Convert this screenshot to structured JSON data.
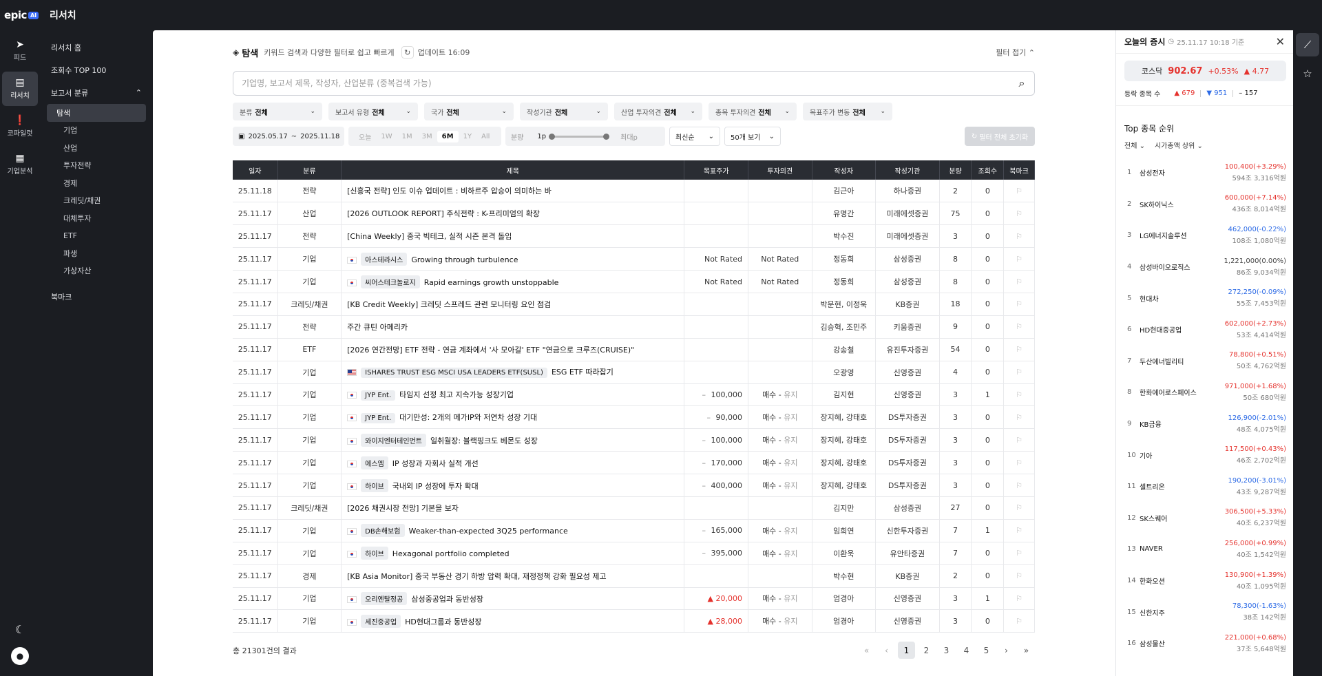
{
  "app": {
    "logo": "epic",
    "logo_badge": "AI",
    "title": "리서치"
  },
  "rail": [
    {
      "label": "피드",
      "icon": "send-icon",
      "glyph": "➤"
    },
    {
      "label": "리서치",
      "icon": "clipboard-icon",
      "glyph": "▤"
    },
    {
      "label": "코파일럿",
      "icon": "copilot-icon",
      "glyph": "❗"
    },
    {
      "label": "기업분석",
      "icon": "building-icon",
      "glyph": "▦"
    }
  ],
  "sidebar": {
    "home": "리서치 홈",
    "top100": "조회수 TOP 100",
    "category_head": "보고서 분류",
    "subitems": [
      "탐색",
      "기업",
      "산업",
      "투자전략",
      "경제",
      "크레딧/채권",
      "대체투자",
      "ETF",
      "파생",
      "가상자산"
    ],
    "bookmark": "북마크"
  },
  "header": {
    "title": "탐색",
    "desc": "키워드 검색과 다양한 필터로 쉽고 빠르게",
    "update": "업데이트 16:09",
    "fold": "필터 접기"
  },
  "search": {
    "placeholder": "기업명, 보고서 제목, 작성자, 산업분류 (중복검색 가능)"
  },
  "filters": [
    {
      "label": "분류",
      "value": "전체"
    },
    {
      "label": "보고서 유형",
      "value": "전체"
    },
    {
      "label": "국가",
      "value": "전체"
    },
    {
      "label": "작성기관",
      "value": "전체"
    },
    {
      "label": "산업 투자의견",
      "value": "전체"
    },
    {
      "label": "종목 투자의견",
      "value": "전체"
    },
    {
      "label": "목표주가 변동",
      "value": "전체"
    }
  ],
  "controls": {
    "date_from": "2025.05.17",
    "date_to": "2025.11.18",
    "periods": [
      "오늘",
      "1W",
      "1M",
      "3M",
      "6M",
      "1Y",
      "All"
    ],
    "period_active": "6M",
    "amount_label": "분량",
    "amount_min": "1p",
    "amount_max": "최대p",
    "sort": "최신순",
    "per_page": "50개 보기",
    "reset": "필터 전체 초기화"
  },
  "table": {
    "headers": [
      "일자",
      "분류",
      "제목",
      "목표주가",
      "투자의견",
      "작성자",
      "작성기관",
      "분량",
      "조회수",
      "북마크"
    ],
    "rows": [
      {
        "date": "25.11.18",
        "cat": "전략",
        "flag": "",
        "stock": "",
        "title": "[신흥국 전략] 인도 이슈 업데이트 : 비하르주 압승이 의미하는 바",
        "target": "",
        "dir": "",
        "opinion": "",
        "author": "김근아",
        "org": "하나증권",
        "pages": "2",
        "views": "0"
      },
      {
        "date": "25.11.17",
        "cat": "산업",
        "flag": "",
        "stock": "",
        "title": "[2026 OUTLOOK REPORT] 주식전략 : K-프리미엄의 확장",
        "target": "",
        "dir": "",
        "opinion": "",
        "author": "유명간",
        "org": "미래에셋증권",
        "pages": "75",
        "views": "0"
      },
      {
        "date": "25.11.17",
        "cat": "전략",
        "flag": "",
        "stock": "",
        "title": "[China Weekly] 중국 빅테크, 실적 시즌 본격 돌입",
        "target": "",
        "dir": "",
        "opinion": "",
        "author": "박수진",
        "org": "미래에셋증권",
        "pages": "3",
        "views": "0"
      },
      {
        "date": "25.11.17",
        "cat": "기업",
        "flag": "kr",
        "stock": "아스테라시스",
        "title": "Growing through turbulence",
        "target": "Not Rated",
        "dir": "",
        "opinion": "Not Rated",
        "author": "정동희",
        "org": "삼성증권",
        "pages": "8",
        "views": "0"
      },
      {
        "date": "25.11.17",
        "cat": "기업",
        "flag": "kr",
        "stock": "씨어스테크놀로지",
        "title": "Rapid earnings growth unstoppable",
        "target": "Not Rated",
        "dir": "",
        "opinion": "Not Rated",
        "author": "정동희",
        "org": "삼성증권",
        "pages": "8",
        "views": "0"
      },
      {
        "date": "25.11.17",
        "cat": "크레딧/채권",
        "flag": "",
        "stock": "",
        "title": "[KB Credit Weekly] 크레딧 스프레드 관련 모니터링 요인 점검",
        "target": "",
        "dir": "",
        "opinion": "",
        "author": "박문현, 이정욱",
        "org": "KB증권",
        "pages": "18",
        "views": "0"
      },
      {
        "date": "25.11.17",
        "cat": "전략",
        "flag": "",
        "stock": "",
        "title": "주간 큐틴 아메리카",
        "target": "",
        "dir": "",
        "opinion": "",
        "author": "김승혁, 조민주",
        "org": "키움증권",
        "pages": "9",
        "views": "0"
      },
      {
        "date": "25.11.17",
        "cat": "ETF",
        "flag": "",
        "stock": "",
        "title": "[2026 연간전망] ETF 전략 - 연금 계좌에서 '사 모아갈' ETF \"연금으로 크루즈(CRUISE)\"",
        "target": "",
        "dir": "",
        "opinion": "",
        "author": "강송철",
        "org": "유진투자증권",
        "pages": "54",
        "views": "0"
      },
      {
        "date": "25.11.17",
        "cat": "기업",
        "flag": "us",
        "stock": "ISHARES TRUST ESG MSCI USA LEADERS ETF(SUSL)",
        "title": "ESG ETF 따라잡기",
        "target": "",
        "dir": "",
        "opinion": "",
        "author": "오광영",
        "org": "신영증권",
        "pages": "4",
        "views": "0"
      },
      {
        "date": "25.11.17",
        "cat": "기업",
        "flag": "kr",
        "stock": "JYP Ent.",
        "title": "타임지 선정 최고 지속가능 성장기업",
        "target": "100,000",
        "dir": "–",
        "opinion": "매수 - 유지",
        "author": "김지현",
        "org": "신영증권",
        "pages": "3",
        "views": "1"
      },
      {
        "date": "25.11.17",
        "cat": "기업",
        "flag": "kr",
        "stock": "JYP Ent.",
        "title": "대기만성: 2개의 메가IP와 저연차 성장 기대",
        "target": "90,000",
        "dir": "–",
        "opinion": "매수 - 유지",
        "author": "장지혜, 강태호",
        "org": "DS투자증권",
        "pages": "3",
        "views": "0"
      },
      {
        "date": "25.11.17",
        "cat": "기업",
        "flag": "kr",
        "stock": "와이지엔터테인먼트",
        "title": "일취월장: 블랙핑크도 베몬도 성장",
        "target": "100,000",
        "dir": "–",
        "opinion": "매수 - 유지",
        "author": "장지혜, 강태호",
        "org": "DS투자증권",
        "pages": "3",
        "views": "0"
      },
      {
        "date": "25.11.17",
        "cat": "기업",
        "flag": "kr",
        "stock": "에스엠",
        "title": "IP 성장과 자회사 실적 개선",
        "target": "170,000",
        "dir": "–",
        "opinion": "매수 - 유지",
        "author": "장지혜, 강태호",
        "org": "DS투자증권",
        "pages": "3",
        "views": "0"
      },
      {
        "date": "25.11.17",
        "cat": "기업",
        "flag": "kr",
        "stock": "하이브",
        "title": "국내외 IP 성장에 투자 확대",
        "target": "400,000",
        "dir": "–",
        "opinion": "매수 - 유지",
        "author": "장지혜, 강태호",
        "org": "DS투자증권",
        "pages": "3",
        "views": "0"
      },
      {
        "date": "25.11.17",
        "cat": "크레딧/채권",
        "flag": "",
        "stock": "",
        "title": "[2026 채권시장 전망] 기본을 보자",
        "target": "",
        "dir": "",
        "opinion": "",
        "author": "김지만",
        "org": "삼성증권",
        "pages": "27",
        "views": "0"
      },
      {
        "date": "25.11.17",
        "cat": "기업",
        "flag": "kr",
        "stock": "DB손해보험",
        "title": "Weaker-than-expected 3Q25 performance",
        "target": "165,000",
        "dir": "–",
        "opinion": "매수 - 유지",
        "author": "임희연",
        "org": "신한투자증권",
        "pages": "7",
        "views": "1"
      },
      {
        "date": "25.11.17",
        "cat": "기업",
        "flag": "kr",
        "stock": "하이브",
        "title": "Hexagonal portfolio completed",
        "target": "395,000",
        "dir": "–",
        "opinion": "매수 - 유지",
        "author": "이환욱",
        "org": "유안타증권",
        "pages": "7",
        "views": "0"
      },
      {
        "date": "25.11.17",
        "cat": "경제",
        "flag": "",
        "stock": "",
        "title": "[KB Asia Monitor] 중국 부동산 경기 하방 압력 확대, 재정정책 강화 필요성 제고",
        "target": "",
        "dir": "",
        "opinion": "",
        "author": "박수현",
        "org": "KB증권",
        "pages": "2",
        "views": "0"
      },
      {
        "date": "25.11.17",
        "cat": "기업",
        "flag": "kr",
        "stock": "오리엔탈정공",
        "title": "삼성중공업과 동반성장",
        "target": "20,000",
        "dir": "▲",
        "opinion": "매수 - 유지",
        "author": "엄경아",
        "org": "신영증권",
        "pages": "3",
        "views": "1"
      },
      {
        "date": "25.11.17",
        "cat": "기업",
        "flag": "kr",
        "stock": "세진중공업",
        "title": "HD현대그룹과 동반성장",
        "target": "28,000",
        "dir": "▲",
        "opinion": "매수 - 유지",
        "author": "엄경아",
        "org": "신영증권",
        "pages": "3",
        "views": "0"
      }
    ]
  },
  "footer": {
    "total": "총 21301건의 결과",
    "pages": [
      "1",
      "2",
      "3",
      "4",
      "5"
    ],
    "current": "1"
  },
  "market": {
    "title": "오늘의 증시",
    "time": "25.11.17 10:18 기준",
    "index_name": "코스닥",
    "index_value": "902.67",
    "index_pct": "+0.53%",
    "index_chg": "▲ 4.77",
    "breadth_label": "등락 종목 수",
    "up": "▲ 679",
    "down": "▼ 951",
    "flat": "– 157",
    "top_title": "Top 종목 순위",
    "tab1": "전체",
    "tab2": "시가총액 상위",
    "stocks": [
      {
        "rank": "1",
        "name": "삼성전자",
        "price": "100,400(+3.29%)",
        "cap": "594조 3,316억원",
        "trend": "up"
      },
      {
        "rank": "2",
        "name": "SK하이닉스",
        "price": "600,000(+7.14%)",
        "cap": "436조 8,014억원",
        "trend": "up"
      },
      {
        "rank": "3",
        "name": "LG에너지솔루션",
        "price": "462,000(-0.22%)",
        "cap": "108조 1,080억원",
        "trend": "down"
      },
      {
        "rank": "4",
        "name": "삼성바이오로직스",
        "price": "1,221,000(0.00%)",
        "cap": "86조 9,034억원",
        "trend": "flat"
      },
      {
        "rank": "5",
        "name": "현대차",
        "price": "272,250(-0.09%)",
        "cap": "55조 7,453억원",
        "trend": "down"
      },
      {
        "rank": "6",
        "name": "HD현대중공업",
        "price": "602,000(+2.73%)",
        "cap": "53조 4,414억원",
        "trend": "up"
      },
      {
        "rank": "7",
        "name": "두산에너빌리티",
        "price": "78,800(+0.51%)",
        "cap": "50조 4,762억원",
        "trend": "up"
      },
      {
        "rank": "8",
        "name": "한화에어로스페이스",
        "price": "971,000(+1.68%)",
        "cap": "50조 680억원",
        "trend": "up"
      },
      {
        "rank": "9",
        "name": "KB금융",
        "price": "126,900(-2.01%)",
        "cap": "48조 4,075억원",
        "trend": "down"
      },
      {
        "rank": "10",
        "name": "기아",
        "price": "117,500(+0.43%)",
        "cap": "46조 2,702억원",
        "trend": "up"
      },
      {
        "rank": "11",
        "name": "셀트리온",
        "price": "190,200(-3.01%)",
        "cap": "43조 9,287억원",
        "trend": "down"
      },
      {
        "rank": "12",
        "name": "SK스퀘어",
        "price": "306,500(+5.33%)",
        "cap": "40조 6,237억원",
        "trend": "up"
      },
      {
        "rank": "13",
        "name": "NAVER",
        "price": "256,000(+0.99%)",
        "cap": "40조 1,542억원",
        "trend": "up"
      },
      {
        "rank": "14",
        "name": "한화오션",
        "price": "130,900(+1.39%)",
        "cap": "40조 1,095억원",
        "trend": "up"
      },
      {
        "rank": "15",
        "name": "신한지주",
        "price": "78,300(-1.63%)",
        "cap": "38조 142억원",
        "trend": "down"
      },
      {
        "rank": "16",
        "name": "삼성물산",
        "price": "221,000(+0.68%)",
        "cap": "37조 5,648억원",
        "trend": "up"
      }
    ]
  },
  "colors": {
    "up": "#e5322d",
    "down": "#2d6be6",
    "flat": "#444444"
  }
}
